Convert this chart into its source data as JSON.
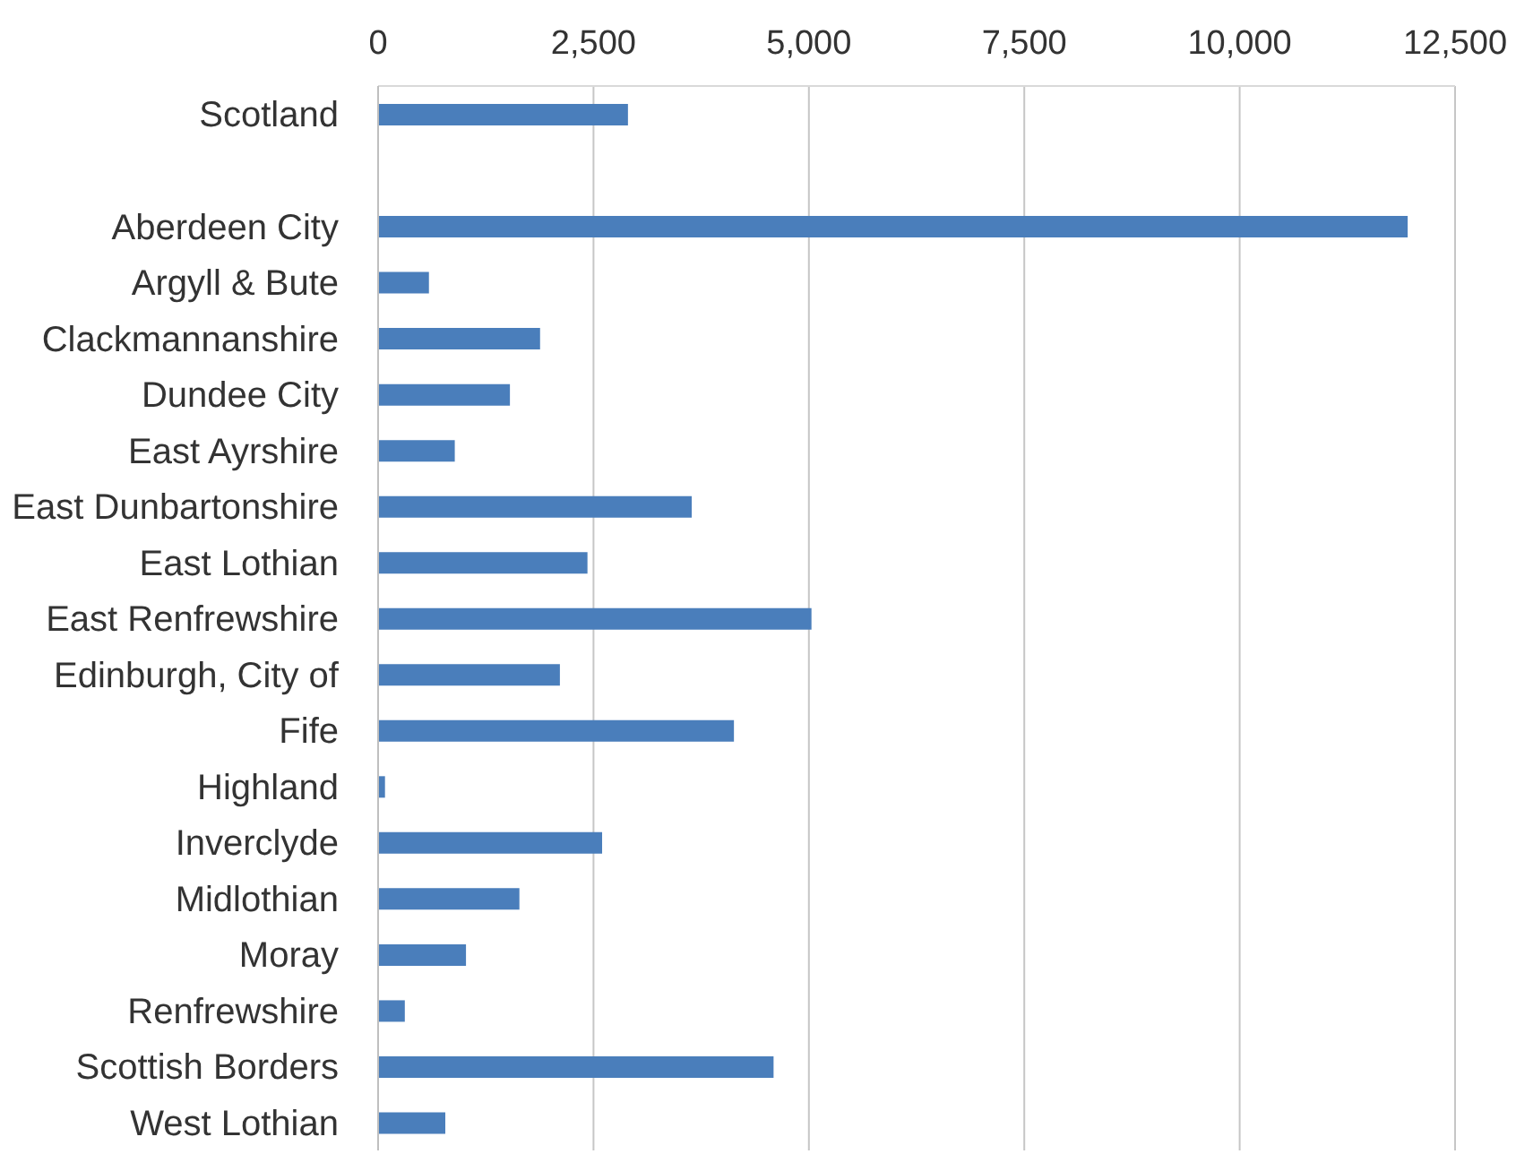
{
  "chart_data": {
    "type": "bar",
    "orientation": "horizontal",
    "categories": [
      "Scotland",
      null,
      "Aberdeen City",
      "Argyll & Bute",
      "Clackmannanshire",
      "Dundee City",
      "East Ayrshire",
      "East Dunbartonshire",
      "East Lothian",
      "East Renfrewshire",
      "Edinburgh, City of",
      "Fife",
      "Highland",
      "Inverclyde",
      "Midlothian",
      "Moray",
      "Renfrewshire",
      "Scottish Borders",
      "West Lothian"
    ],
    "values": [
      2900,
      null,
      11950,
      590,
      1880,
      1530,
      890,
      3640,
      2430,
      5030,
      2110,
      4130,
      80,
      2600,
      1640,
      1020,
      310,
      4590,
      780
    ],
    "color": "#4a7ebb",
    "xlim": [
      0,
      12500
    ],
    "xticks": [
      0,
      {
        "value": 2500,
        "label": "2,500"
      },
      {
        "value": 5000,
        "label": "5,000"
      },
      {
        "value": 7500,
        "label": "7,500"
      },
      {
        "value": 10000,
        "label": "10,000"
      },
      {
        "value": 12500,
        "label": "12,500"
      }
    ],
    "grid": "x"
  }
}
